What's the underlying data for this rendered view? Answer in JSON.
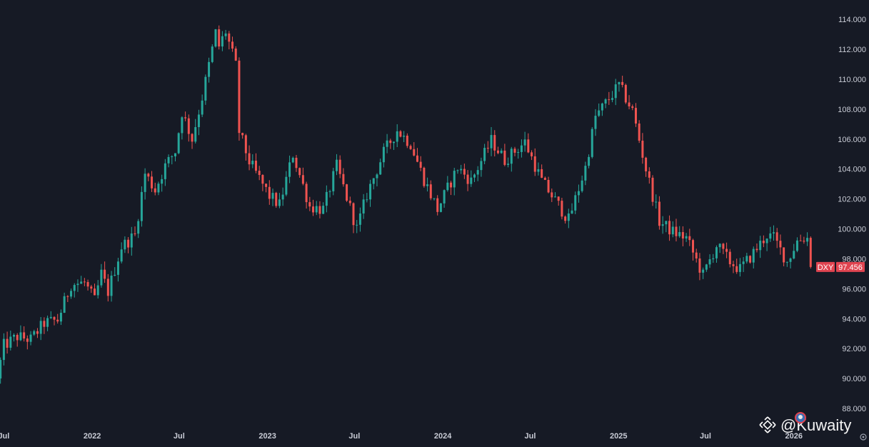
{
  "chart_data": {
    "type": "candlestick",
    "symbol": "DXY",
    "last_price": "97.456",
    "colors": {
      "background": "#161a25",
      "up": "#26a69a",
      "down": "#ef5350",
      "text": "#c9ccd6",
      "badge": "#e04450",
      "price_line": "#e04450"
    },
    "ylim": [
      86.9,
      115.3
    ],
    "y_ticks": [
      {
        "value": 88,
        "label": "88.000"
      },
      {
        "value": 90,
        "label": "90.000"
      },
      {
        "value": 92,
        "label": "92.000"
      },
      {
        "value": 94,
        "label": "94.000"
      },
      {
        "value": 96,
        "label": "96.000"
      },
      {
        "value": 98,
        "label": "98.000"
      },
      {
        "value": 100,
        "label": "100.000"
      },
      {
        "value": 102,
        "label": "102.000"
      },
      {
        "value": 104,
        "label": "104.000"
      },
      {
        "value": 106,
        "label": "106.000"
      },
      {
        "value": 108,
        "label": "108.000"
      },
      {
        "value": 110,
        "label": "110.000"
      },
      {
        "value": 112,
        "label": "112.000"
      },
      {
        "value": 114,
        "label": "114.000"
      }
    ],
    "xlim": [
      "2021-06-23",
      "2026-02-12"
    ],
    "x_ticks": [
      {
        "date": "2021-07-01",
        "label": "Jul"
      },
      {
        "date": "2022-01-01",
        "label": "2022"
      },
      {
        "date": "2022-07-01",
        "label": "Jul"
      },
      {
        "date": "2023-01-01",
        "label": "2023"
      },
      {
        "date": "2023-07-01",
        "label": "Jul"
      },
      {
        "date": "2024-01-01",
        "label": "2024"
      },
      {
        "date": "2024-07-01",
        "label": "Jul"
      },
      {
        "date": "2025-01-01",
        "label": "2025"
      },
      {
        "date": "2025-07-01",
        "label": "Jul"
      },
      {
        "date": "2026-01-01",
        "label": "2026"
      }
    ],
    "interval": "1W",
    "price_path": [
      [
        "2021-06-24",
        90.0
      ],
      [
        "2021-07-08",
        92.2
      ],
      [
        "2021-08-05",
        92.8
      ],
      [
        "2021-09-02",
        92.6
      ],
      [
        "2021-09-30",
        93.7
      ],
      [
        "2021-10-28",
        93.9
      ],
      [
        "2021-11-25",
        96.3
      ],
      [
        "2021-12-23",
        96.4
      ],
      [
        "2022-01-13",
        95.2
      ],
      [
        "2022-01-27",
        97.0
      ],
      [
        "2022-02-10",
        95.8
      ],
      [
        "2022-03-10",
        98.8
      ],
      [
        "2022-04-07",
        99.6
      ],
      [
        "2022-04-28",
        103.7
      ],
      [
        "2022-05-19",
        102.6
      ],
      [
        "2022-06-09",
        104.2
      ],
      [
        "2022-06-30",
        105.2
      ],
      [
        "2022-07-14",
        107.8
      ],
      [
        "2022-08-04",
        106.0
      ],
      [
        "2022-08-25",
        108.8
      ],
      [
        "2022-09-22",
        113.1
      ],
      [
        "2022-09-29",
        112.2
      ],
      [
        "2022-10-13",
        113.2
      ],
      [
        "2022-11-03",
        110.9
      ],
      [
        "2022-11-10",
        106.5
      ],
      [
        "2022-12-01",
        104.5
      ],
      [
        "2023-01-12",
        102.2
      ],
      [
        "2023-02-02",
        101.6
      ],
      [
        "2023-03-02",
        105.0
      ],
      [
        "2023-04-06",
        101.5
      ],
      [
        "2023-05-04",
        101.3
      ],
      [
        "2023-06-01",
        104.2
      ],
      [
        "2023-07-13",
        100.0
      ],
      [
        "2023-08-03",
        102.3
      ],
      [
        "2023-09-07",
        105.1
      ],
      [
        "2023-10-05",
        106.6
      ],
      [
        "2023-11-02",
        105.7
      ],
      [
        "2023-11-30",
        103.3
      ],
      [
        "2023-12-28",
        101.3
      ],
      [
        "2024-02-08",
        104.1
      ],
      [
        "2024-03-07",
        103.2
      ],
      [
        "2024-04-18",
        105.9
      ],
      [
        "2024-05-16",
        104.6
      ],
      [
        "2024-06-27",
        105.8
      ],
      [
        "2024-08-01",
        103.2
      ],
      [
        "2024-09-26",
        100.6
      ],
      [
        "2024-10-31",
        104.1
      ],
      [
        "2024-11-21",
        107.5
      ],
      [
        "2025-01-09",
        109.6
      ],
      [
        "2025-02-06",
        107.9
      ],
      [
        "2025-03-06",
        104.0
      ],
      [
        "2025-04-03",
        100.5
      ],
      [
        "2025-05-01",
        99.8
      ],
      [
        "2025-05-29",
        99.4
      ],
      [
        "2025-07-03",
        96.9
      ],
      [
        "2025-07-31",
        98.9
      ],
      [
        "2025-08-28",
        97.8
      ],
      [
        "2025-09-18",
        97.3
      ],
      [
        "2025-10-16",
        98.4
      ],
      [
        "2025-11-13",
        99.6
      ],
      [
        "2025-11-27",
        99.4
      ],
      [
        "2025-12-25",
        97.8
      ],
      [
        "2026-01-15",
        99.2
      ],
      [
        "2026-01-29",
        99.4
      ]
    ],
    "last_candle": {
      "date": "2026-02-05",
      "open": 99.4,
      "high": 99.5,
      "low": 97.35,
      "close": 97.456
    }
  },
  "watermark": {
    "icon": "binance-logo-icon",
    "text": "@Kuwaity"
  }
}
